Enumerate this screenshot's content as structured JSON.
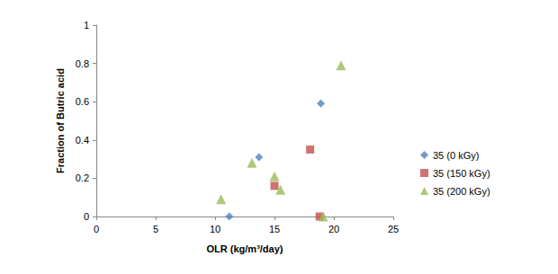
{
  "chart_data": {
    "type": "scatter",
    "x_label": "OLR (kg/m³/day)",
    "y_label": "Fraction of Butric acid",
    "xlim": [
      0,
      25
    ],
    "xticks": [
      0,
      5,
      10,
      15,
      20,
      25
    ],
    "ylim": [
      0,
      1
    ],
    "yticks": [
      0,
      0.2,
      0.4,
      0.6,
      0.8,
      1
    ],
    "grid": false,
    "legend": "right",
    "series": [
      {
        "name": "35 (0 kGy)",
        "color": "#4F81BD",
        "marker": "diamond",
        "x": [
          11.2,
          13.7,
          18.9
        ],
        "values": [
          0,
          0.31,
          0.59
        ]
      },
      {
        "name": "35 (150 kGy)",
        "color": "#C0504D",
        "marker": "square",
        "x": [
          15.0,
          18.0,
          18.8
        ],
        "values": [
          0.16,
          0.35,
          0
        ]
      },
      {
        "name": "35 (200 kGy)",
        "color": "#9BBB59",
        "marker": "triangle",
        "x": [
          10.5,
          13.1,
          15.0,
          15.5,
          19.1,
          20.6
        ],
        "values": [
          0.09,
          0.28,
          0.21,
          0.14,
          0,
          0.79
        ]
      }
    ]
  }
}
